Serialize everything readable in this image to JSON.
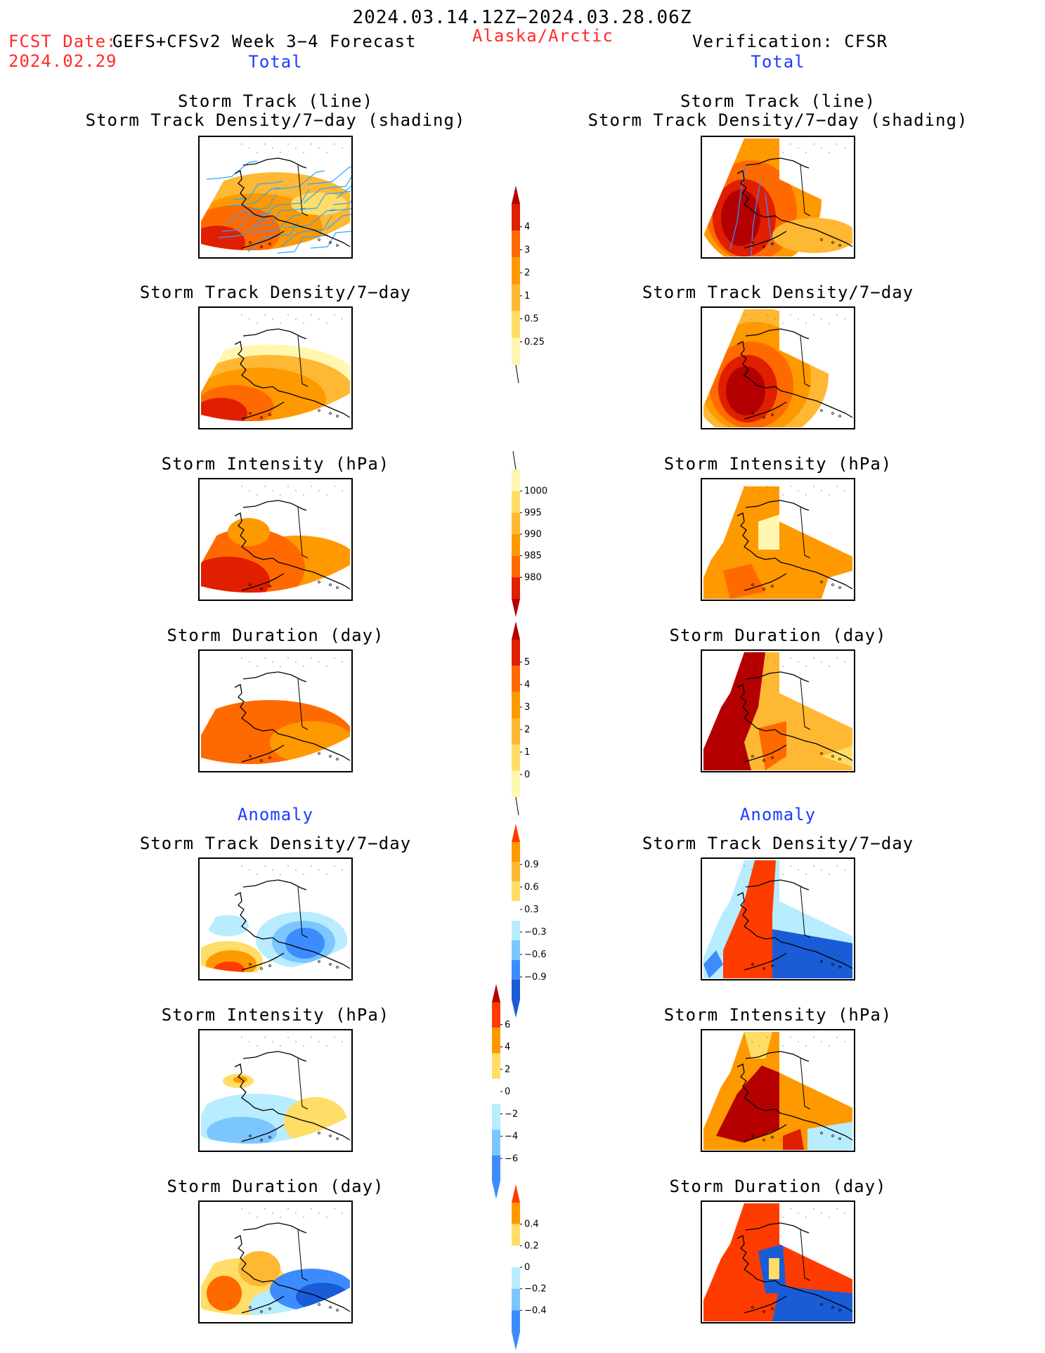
{
  "header": {
    "date_range": "2024.03.14.12Z−2024.03.28.06Z",
    "fcst_date_label": "FCST Date:",
    "fcst_date_value": "2024.02.29",
    "model": "GEFS+CFSv2 Week 3−4 Forecast",
    "region": "Alaska/Arctic",
    "verification": "Verification: CFSR"
  },
  "columns": {
    "left_total": "Total",
    "right_total": "Total",
    "left_anomaly": "Anomaly",
    "right_anomaly": "Anomaly"
  },
  "panels": {
    "track_title_1": "Storm Track (line)",
    "track_title_2": "Storm Track Density/7−day (shading)",
    "density": "Storm Track Density/7−day",
    "intensity": "Storm Intensity (hPa)",
    "duration": "Storm Duration (day)"
  },
  "colorbars": {
    "density_total": [
      "0.25",
      "0.5",
      "1",
      "2",
      "3",
      "4"
    ],
    "intensity_total": [
      "980",
      "985",
      "990",
      "995",
      "1000"
    ],
    "duration_total": [
      "0",
      "1",
      "2",
      "3",
      "4",
      "5"
    ],
    "density_anom": [
      "−0.9",
      "−0.6",
      "−0.3",
      "0.3",
      "0.6",
      "0.9"
    ],
    "intensity_anom": [
      "−6",
      "−4",
      "−2",
      "0",
      "2",
      "4",
      "6"
    ],
    "duration_anom": [
      "−0.4",
      "−0.2",
      "0",
      "0.2",
      "0.4"
    ]
  },
  "palette": {
    "pale_yellow": "#fff7b0",
    "yellow": "#ffdd66",
    "light_orange": "#ffb833",
    "orange": "#ff9900",
    "dark_orange": "#ff6a00",
    "red_orange": "#ff3c00",
    "red": "#e01e00",
    "dark_red": "#b40000",
    "light_blue": "#b8ecff",
    "sky_blue": "#7cc6ff",
    "blue": "#3c8cff",
    "dark_blue": "#1a5cd6",
    "track_line": "#2fa6ff"
  }
}
